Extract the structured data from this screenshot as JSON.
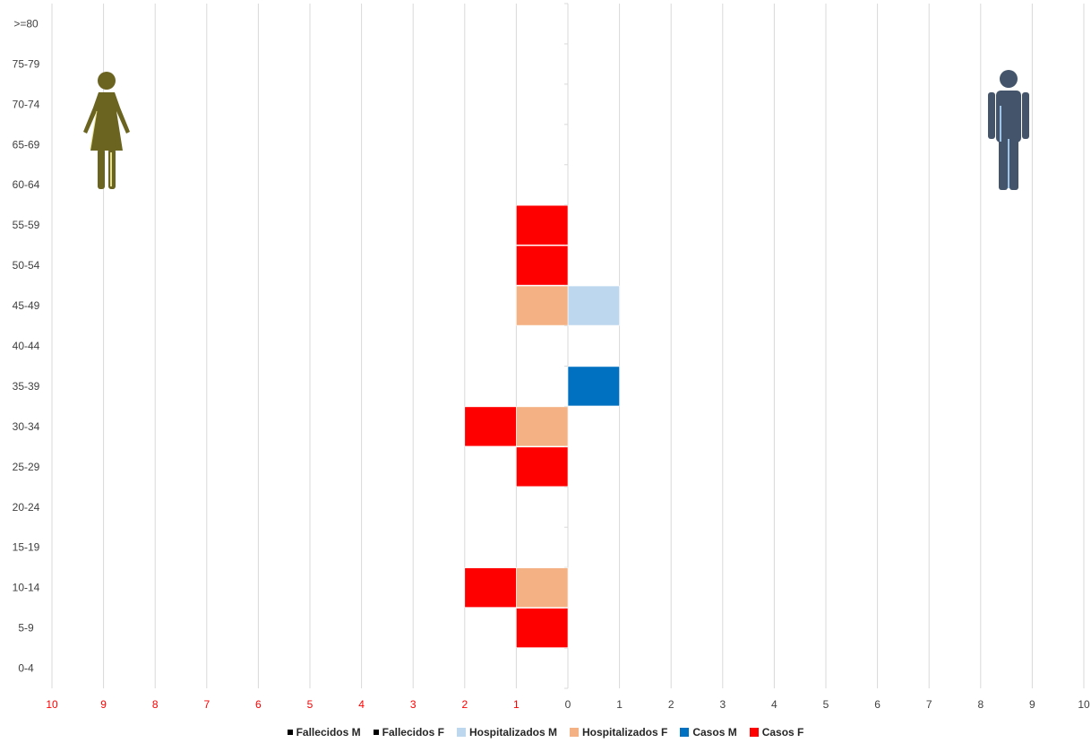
{
  "chart_data": {
    "type": "bar",
    "orientation": "horizontal",
    "stacked": true,
    "categories": [
      "0-4",
      "5-9",
      "10-14",
      "15-19",
      "20-24",
      "25-29",
      "30-34",
      "35-39",
      "40-44",
      "45-49",
      "50-54",
      "55-59",
      "60-64",
      "65-69",
      "70-74",
      "75-79",
      ">=80"
    ],
    "x_tick_labels": [
      "10",
      "9",
      "8",
      "7",
      "6",
      "5",
      "4",
      "3",
      "2",
      "1",
      "0",
      "1",
      "2",
      "3",
      "4",
      "5",
      "6",
      "7",
      "8",
      "9",
      "10"
    ],
    "xlim": [
      -10,
      10
    ],
    "grid": true,
    "legend_position": "bottom",
    "left_tick_color": "#ff0000",
    "right_tick_color": "#404040",
    "series": [
      {
        "name": "Fallecidos M",
        "side": "right",
        "color": "#000000",
        "values": [
          0,
          0,
          0,
          0,
          0,
          0,
          0,
          0,
          0,
          0,
          0,
          0,
          0,
          0,
          0,
          0,
          0
        ]
      },
      {
        "name": "Fallecidos F",
        "side": "left",
        "color": "#000000",
        "values": [
          0,
          0,
          0,
          0,
          0,
          0,
          0,
          0,
          0,
          0,
          0,
          0,
          0,
          0,
          0,
          0,
          0
        ]
      },
      {
        "name": "Hospitalizados M",
        "side": "right",
        "color": "#bdd7ee",
        "values": [
          0,
          0,
          0,
          0,
          0,
          0,
          0,
          0,
          0,
          1,
          0,
          0,
          0,
          0,
          0,
          0,
          0
        ]
      },
      {
        "name": "Hospitalizados F",
        "side": "left",
        "color": "#f4b183",
        "values": [
          0,
          0,
          1,
          0,
          0,
          0,
          1,
          0,
          0,
          1,
          0,
          0,
          0,
          0,
          0,
          0,
          0
        ]
      },
      {
        "name": "Casos M",
        "side": "right",
        "color": "#0070c0",
        "values": [
          0,
          0,
          0,
          0,
          0,
          0,
          0,
          1,
          0,
          0,
          0,
          0,
          0,
          0,
          0,
          0,
          0
        ]
      },
      {
        "name": "Casos F",
        "side": "left",
        "color": "#ff0000",
        "values": [
          0,
          1,
          1,
          0,
          0,
          1,
          1,
          0,
          0,
          0,
          1,
          1,
          0,
          0,
          0,
          0,
          0
        ]
      }
    ]
  },
  "icons": {
    "female": {
      "name": "female-figure-icon",
      "color": "#6b6420",
      "accent": "#e6e08a"
    },
    "male": {
      "name": "male-figure-icon",
      "color": "#44546a",
      "accent": "#9dc3e6"
    }
  }
}
